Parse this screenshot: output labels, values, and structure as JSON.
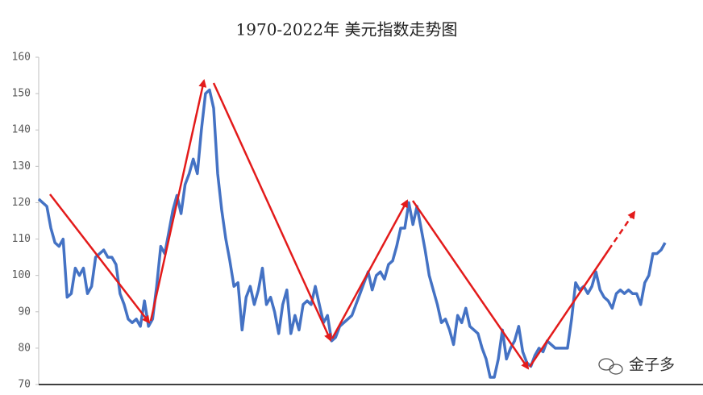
{
  "chart_data": {
    "type": "line",
    "title": "1970-2022年 美元指数走势图",
    "watermark": "金子多",
    "series": [
      {
        "color": "#4472c4",
        "values": [
          121,
          120,
          119,
          113,
          109,
          108,
          110,
          94,
          95,
          102,
          100,
          102,
          95,
          97,
          105,
          106,
          107,
          105,
          105,
          103,
          95,
          92,
          88,
          87,
          88,
          86,
          93,
          86,
          88,
          97,
          108,
          106,
          112,
          118,
          122,
          117,
          125,
          128,
          132,
          128,
          140,
          150,
          151,
          146,
          128,
          118,
          110,
          104,
          97,
          98,
          85,
          94,
          97,
          92,
          96,
          102,
          92,
          94,
          90,
          84,
          92,
          96,
          84,
          89,
          85,
          92,
          93,
          92,
          97,
          92,
          87,
          89,
          82,
          83,
          86,
          87,
          88,
          89,
          92,
          95,
          98,
          101,
          96,
          100,
          101,
          99,
          103,
          104,
          108,
          113,
          113,
          120,
          114,
          119,
          113,
          107,
          100,
          96,
          92,
          87,
          88,
          85,
          81,
          89,
          87,
          91,
          86,
          85,
          84,
          80,
          77,
          72,
          72,
          77,
          85,
          77,
          80,
          82,
          86,
          79,
          76,
          75,
          78,
          80,
          79,
          82,
          81,
          80,
          80,
          80,
          80,
          88,
          98,
          96,
          97,
          95,
          97,
          101,
          96,
          94,
          93,
          91,
          95,
          96,
          95,
          96,
          95,
          95,
          92,
          98,
          100,
          106,
          106,
          107,
          109
        ]
      }
    ],
    "ylim": [
      70,
      160
    ],
    "yticks": [
      70,
      80,
      90,
      100,
      110,
      120,
      130,
      140,
      150,
      160
    ]
  }
}
